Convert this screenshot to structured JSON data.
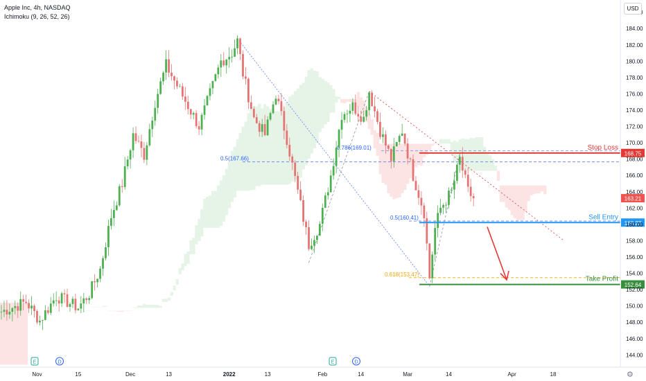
{
  "header": {
    "symbol_line": "Apple Inc, 4h, NASDAQ",
    "indicator_line": "Ichimoku (9, 26, 52, 26)",
    "currency": "USD"
  },
  "chart_data": {
    "type": "candlestick",
    "ylim": [
      142.5,
      187.5
    ],
    "y_ticks": [
      144,
      146,
      148,
      150,
      152,
      154,
      156,
      158,
      160,
      162,
      164,
      166,
      168,
      170,
      172,
      174,
      176,
      178,
      180,
      182,
      184,
      186
    ],
    "x_ticks": [
      "Nov",
      "15",
      "Dec",
      "13",
      "2022",
      "13",
      "Feb",
      "14",
      "Mar",
      "14",
      "Apr",
      "18"
    ],
    "bars_in_view": 226,
    "price_path": [
      {
        "bar": 0,
        "price": 149.3
      },
      {
        "bar": 9,
        "price": 150.5
      },
      {
        "bar": 14,
        "price": 148.2
      },
      {
        "bar": 20,
        "price": 151.2
      },
      {
        "bar": 28,
        "price": 149.8
      },
      {
        "bar": 32,
        "price": 151.5
      },
      {
        "bar": 36,
        "price": 154.5
      },
      {
        "bar": 40,
        "price": 161.0
      },
      {
        "bar": 44,
        "price": 165.0
      },
      {
        "bar": 48,
        "price": 171.0
      },
      {
        "bar": 52,
        "price": 168.5
      },
      {
        "bar": 56,
        "price": 175.0
      },
      {
        "bar": 60,
        "price": 179.5
      },
      {
        "bar": 64,
        "price": 177.0
      },
      {
        "bar": 68,
        "price": 174.5
      },
      {
        "bar": 72,
        "price": 172.0
      },
      {
        "bar": 76,
        "price": 176.0
      },
      {
        "bar": 80,
        "price": 180.0
      },
      {
        "bar": 84,
        "price": 181.0
      },
      {
        "bar": 86,
        "price": 182.5
      },
      {
        "bar": 88,
        "price": 178.5
      },
      {
        "bar": 92,
        "price": 173.0
      },
      {
        "bar": 96,
        "price": 171.0
      },
      {
        "bar": 100,
        "price": 176.0
      },
      {
        "bar": 104,
        "price": 170.5
      },
      {
        "bar": 108,
        "price": 164.0
      },
      {
        "bar": 112,
        "price": 157.5
      },
      {
        "bar": 116,
        "price": 160.0
      },
      {
        "bar": 120,
        "price": 166.0
      },
      {
        "bar": 124,
        "price": 173.5
      },
      {
        "bar": 128,
        "price": 174.5
      },
      {
        "bar": 132,
        "price": 173.0
      },
      {
        "bar": 134,
        "price": 176.3
      },
      {
        "bar": 138,
        "price": 171.5
      },
      {
        "bar": 142,
        "price": 168.0
      },
      {
        "bar": 146,
        "price": 171.5
      },
      {
        "bar": 150,
        "price": 166.0
      },
      {
        "bar": 154,
        "price": 161.5
      },
      {
        "bar": 156,
        "price": 153.5
      },
      {
        "bar": 158,
        "price": 159.5
      },
      {
        "bar": 160,
        "price": 162.0
      },
      {
        "bar": 164,
        "price": 164.0
      },
      {
        "bar": 167,
        "price": 168.0
      },
      {
        "bar": 170,
        "price": 164.0
      },
      {
        "bar": 172,
        "price": 163.2
      }
    ],
    "levels": [
      {
        "label": "Stop Loss",
        "value": 168.75,
        "color": "#e53935"
      },
      {
        "label": "Sell Entry",
        "value": 160.22,
        "color": "#2196f3"
      },
      {
        "label": "Take Profit",
        "value": 152.64,
        "color": "#388e3c"
      }
    ],
    "last_price": {
      "value": 163.21,
      "color": "#ef5350"
    },
    "fib_labels": [
      {
        "text": "0.5(167.66)",
        "value": 167.66,
        "color": "#2962ff"
      },
      {
        "text": "0.786(169.01)",
        "value": 169.01,
        "color": "#2962ff"
      },
      {
        "text": "0.5(160.41)",
        "value": 160.41,
        "color": "#2962ff"
      },
      {
        "text": "0.618(153.47)",
        "value": 153.47,
        "color": "#f7a600"
      }
    ],
    "event_markers": [
      "E",
      "D",
      "E",
      "D"
    ],
    "colors": {
      "up": "#26a69a",
      "down": "#ef5350",
      "candle_up": "#4caf50",
      "candle_down": "#e57373",
      "cloud_bull": "#e6f4e7",
      "cloud_bear": "#fde4e4"
    },
    "grid": false
  },
  "layout_note": ""
}
